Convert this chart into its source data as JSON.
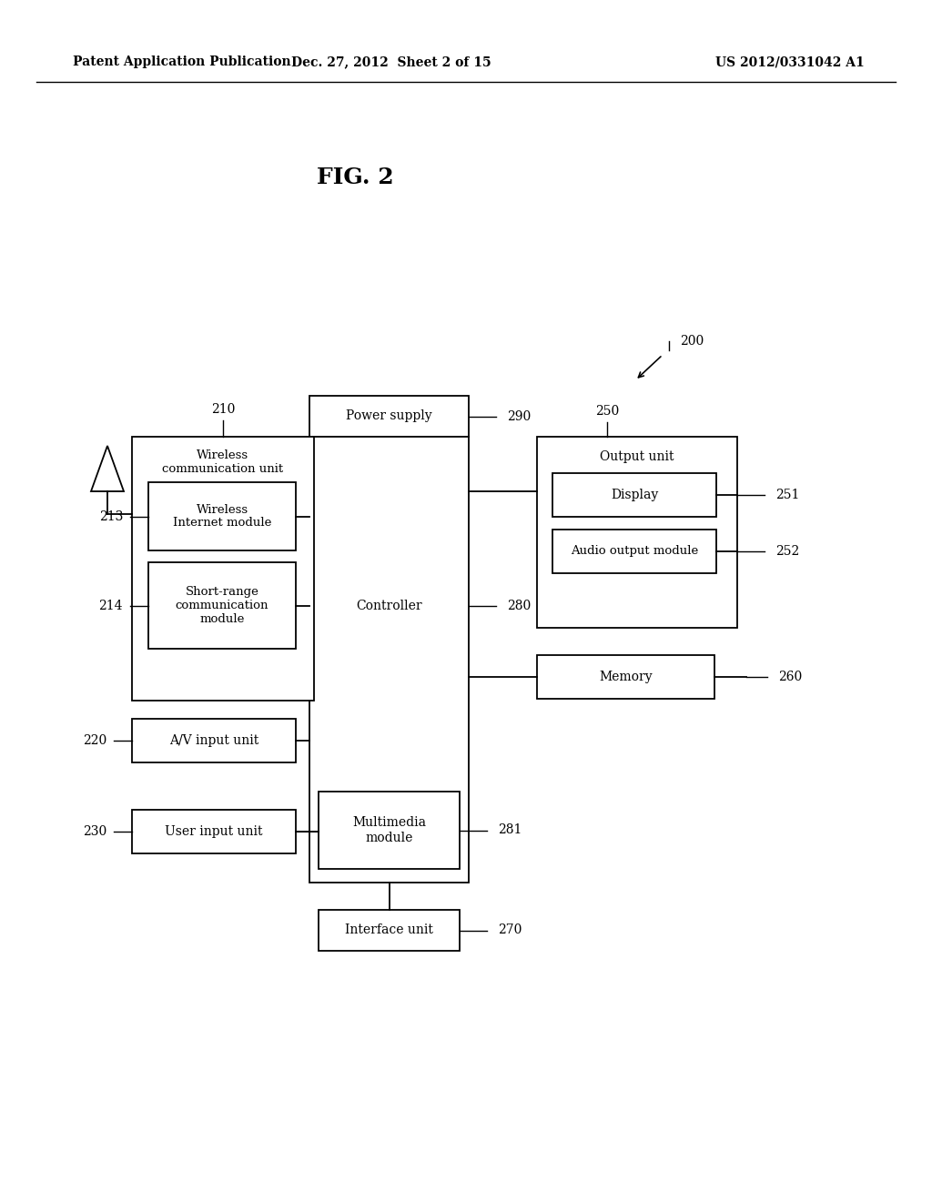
{
  "title": "FIG. 2",
  "header_left": "Patent Application Publication",
  "header_center": "Dec. 27, 2012  Sheet 2 of 15",
  "header_right": "US 2012/0331042 A1",
  "bg_color": "#ffffff",
  "fig_w": 10.24,
  "fig_h": 13.2,
  "dpi": 100
}
